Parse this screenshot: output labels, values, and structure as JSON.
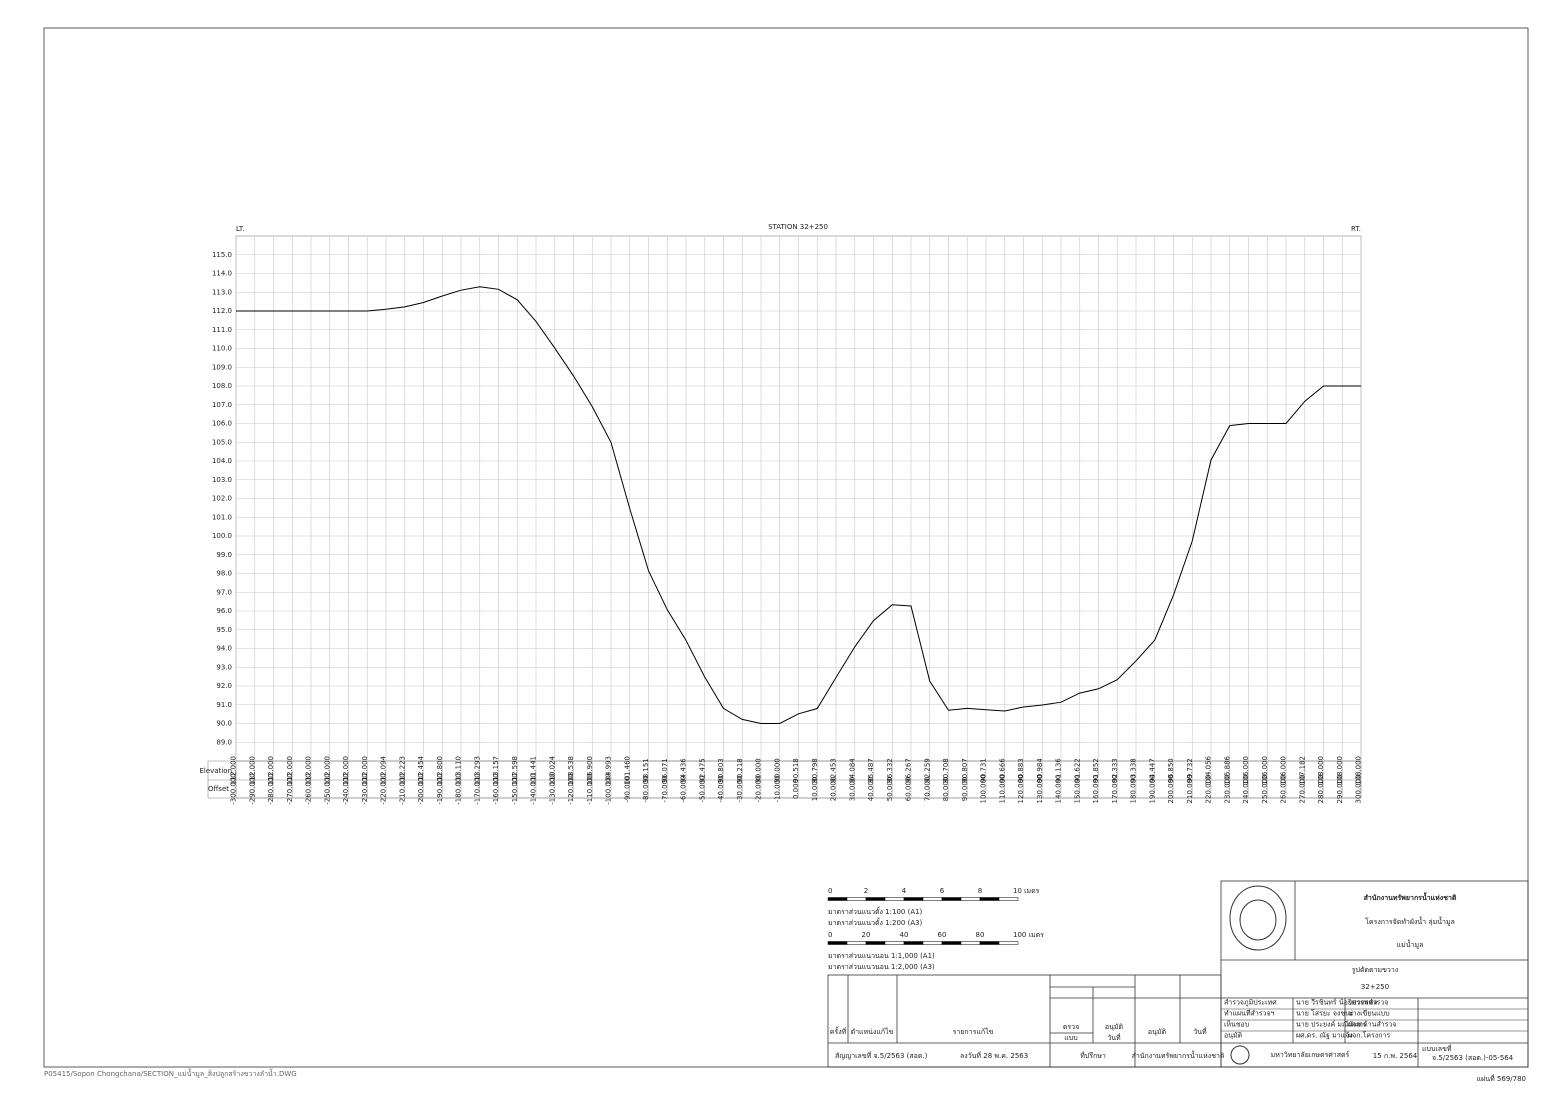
{
  "chart_data": {
    "type": "line",
    "title": "STATION 32+250",
    "left_label": "LT.",
    "right_label": "RT.",
    "row_labels": [
      "Elevation",
      "Offset"
    ],
    "x": [
      -300,
      -290,
      -280,
      -270,
      -260,
      -250,
      -240,
      -230,
      -220,
      -210,
      -200,
      -190,
      -180,
      -170,
      -160,
      -150,
      -140,
      -130,
      -120,
      -110,
      -100,
      -90,
      -80,
      -70,
      -60,
      -50,
      -40,
      -30,
      -20,
      -10,
      0,
      10,
      20,
      30,
      40,
      50,
      60,
      70,
      80,
      90,
      100,
      110,
      120,
      130,
      140,
      150,
      160,
      170,
      180,
      190,
      200,
      210,
      220,
      230,
      240,
      250,
      260,
      270,
      280,
      290,
      300
    ],
    "series": [
      {
        "color": "#000000",
        "values": [
          112,
          112,
          112,
          112,
          112,
          112,
          112,
          112,
          112.094,
          112.223,
          112.454,
          112.8,
          113.11,
          113.293,
          113.157,
          112.598,
          111.441,
          110.024,
          108.538,
          106.9,
          104.993,
          101.46,
          98.151,
          96.071,
          94.436,
          92.475,
          90.803,
          90.218,
          90,
          90,
          90.518,
          90.798,
          92.453,
          94.084,
          95.487,
          96.332,
          96.267,
          92.259,
          90.708,
          90.807,
          90.731,
          90.666,
          90.883,
          90.984,
          91.136,
          91.622,
          91.852,
          92.333,
          93.338,
          94.447,
          96.85,
          99.732,
          104.056,
          105.886,
          106,
          106,
          106,
          107.182,
          108,
          108,
          108
        ],
        "value_labels": [
          "112.000",
          "112.000",
          "112.000",
          "112.000",
          "112.000",
          "112.000",
          "112.000",
          "112.000",
          "112.094",
          "112.223",
          "112.454",
          "112.800",
          "113.110",
          "113.293",
          "113.157",
          "112.598",
          "111.441",
          "110.024",
          "108.538",
          "106.900",
          "104.993",
          "101.460",
          "98.151",
          "96.071",
          "94.436",
          "92.475",
          "90.803",
          "90.218",
          "90.000",
          "90.000",
          "90.518",
          "90.798",
          "92.453",
          "94.084",
          "95.487",
          "96.332",
          "96.267",
          "92.259",
          "90.708",
          "90.807",
          "90.731",
          "90.666",
          "90.883",
          "90.984",
          "91.136",
          "91.622",
          "91.852",
          "92.333",
          "93.338",
          "94.447",
          "96.850",
          "99.732",
          "104.056",
          "105.886",
          "106.000",
          "106.000",
          "106.000",
          "107.182",
          "108.000",
          "108.000",
          "108.000"
        ]
      }
    ],
    "xlim": [
      -300,
      300
    ],
    "ylim": [
      88,
      116
    ],
    "xticks": [
      {
        "value": -300,
        "label": "-300.000"
      },
      {
        "value": -290,
        "label": "-290.000"
      },
      {
        "value": -280,
        "label": "-280.000"
      },
      {
        "value": -270,
        "label": "-270.000"
      },
      {
        "value": -260,
        "label": "-260.000"
      },
      {
        "value": -250,
        "label": "-250.000"
      },
      {
        "value": -240,
        "label": "-240.000"
      },
      {
        "value": -230,
        "label": "-230.000"
      },
      {
        "value": -220,
        "label": "-220.000"
      },
      {
        "value": -210,
        "label": "-210.000"
      },
      {
        "value": -200,
        "label": "-200.000"
      },
      {
        "value": -190,
        "label": "-190.000"
      },
      {
        "value": -180,
        "label": "-180.000"
      },
      {
        "value": -170,
        "label": "-170.000"
      },
      {
        "value": -160,
        "label": "-160.000"
      },
      {
        "value": -150,
        "label": "-150.000"
      },
      {
        "value": -140,
        "label": "-140.000"
      },
      {
        "value": -130,
        "label": "-130.000"
      },
      {
        "value": -120,
        "label": "-120.000"
      },
      {
        "value": -110,
        "label": "-110.000"
      },
      {
        "value": -100,
        "label": "-100.000"
      },
      {
        "value": -90,
        "label": "-90.000"
      },
      {
        "value": -80,
        "label": "-80.000"
      },
      {
        "value": -70,
        "label": "-70.000"
      },
      {
        "value": -60,
        "label": "-60.000"
      },
      {
        "value": -50,
        "label": "-50.000"
      },
      {
        "value": -40,
        "label": "-40.000"
      },
      {
        "value": -30,
        "label": "-30.000"
      },
      {
        "value": -20,
        "label": "-20.000"
      },
      {
        "value": -10,
        "label": "-10.000"
      },
      {
        "value": 0,
        "label": "0.000"
      },
      {
        "value": 10,
        "label": "10.000"
      },
      {
        "value": 20,
        "label": "20.000"
      },
      {
        "value": 30,
        "label": "30.000"
      },
      {
        "value": 40,
        "label": "40.000"
      },
      {
        "value": 50,
        "label": "50.000"
      },
      {
        "value": 60,
        "label": "60.000"
      },
      {
        "value": 70,
        "label": "70.000"
      },
      {
        "value": 80,
        "label": "80.000"
      },
      {
        "value": 90,
        "label": "90.000"
      },
      {
        "value": 100,
        "label": "100.000"
      },
      {
        "value": 110,
        "label": "110.000"
      },
      {
        "value": 120,
        "label": "120.000"
      },
      {
        "value": 130,
        "label": "130.000"
      },
      {
        "value": 140,
        "label": "140.000"
      },
      {
        "value": 150,
        "label": "150.000"
      },
      {
        "value": 160,
        "label": "160.000"
      },
      {
        "value": 170,
        "label": "170.000"
      },
      {
        "value": 180,
        "label": "180.000"
      },
      {
        "value": 190,
        "label": "190.000"
      },
      {
        "value": 200,
        "label": "200.000"
      },
      {
        "value": 210,
        "label": "210.000"
      },
      {
        "value": 220,
        "label": "220.000"
      },
      {
        "value": 230,
        "label": "230.000"
      },
      {
        "value": 240,
        "label": "240.000"
      },
      {
        "value": 250,
        "label": "250.000"
      },
      {
        "value": 260,
        "label": "260.000"
      },
      {
        "value": 270,
        "label": "270.000"
      },
      {
        "value": 280,
        "label": "280.000"
      },
      {
        "value": 290,
        "label": "290.000"
      },
      {
        "value": 300,
        "label": "300.000"
      }
    ],
    "yticks": [
      {
        "value": 89,
        "label": "89.0"
      },
      {
        "value": 90,
        "label": "90.0"
      },
      {
        "value": 91,
        "label": "91.0"
      },
      {
        "value": 92,
        "label": "92.0"
      },
      {
        "value": 93,
        "label": "93.0"
      },
      {
        "value": 94,
        "label": "94.0"
      },
      {
        "value": 95,
        "label": "95.0"
      },
      {
        "value": 96,
        "label": "96.0"
      },
      {
        "value": 97,
        "label": "97.0"
      },
      {
        "value": 98,
        "label": "98.0"
      },
      {
        "value": 99,
        "label": "99.0"
      },
      {
        "value": 100,
        "label": "100.0"
      },
      {
        "value": 101,
        "label": "101.0"
      },
      {
        "value": 102,
        "label": "102.0"
      },
      {
        "value": 103,
        "label": "103.0"
      },
      {
        "value": 104,
        "label": "104.0"
      },
      {
        "value": 105,
        "label": "105.0"
      },
      {
        "value": 106,
        "label": "106.0"
      },
      {
        "value": 107,
        "label": "107.0"
      },
      {
        "value": 108,
        "label": "108.0"
      },
      {
        "value": 109,
        "label": "109.0"
      },
      {
        "value": 110,
        "label": "110.0"
      },
      {
        "value": 111,
        "label": "111.0"
      },
      {
        "value": 112,
        "label": "112.0"
      },
      {
        "value": 113,
        "label": "113.0"
      },
      {
        "value": 114,
        "label": "114.0"
      },
      {
        "value": 115,
        "label": "115.0"
      }
    ],
    "grid": true,
    "grid_color": "#c8c8c8"
  },
  "scale_bars": [
    {
      "ticks": [
        "0",
        "2",
        "4",
        "6",
        "8",
        "10 เมตร"
      ],
      "notes": [
        "มาตราส่วนแนวตั้ง 1:100 (A1)",
        "มาตราส่วนแนวตั้ง 1:200 (A3)"
      ]
    },
    {
      "ticks": [
        "0",
        "20",
        "40",
        "60",
        "80",
        "100 เมตร"
      ],
      "notes": [
        "มาตราส่วนแนวนอน 1:1,000 (A1)",
        "มาตราส่วนแนวนอน 1:2,000 (A3)"
      ]
    }
  ],
  "revision_block": {
    "headers": [
      "ครั้งที่",
      "ตำแหน่งแก้ไข",
      "รายการแก้ไข",
      "ตรวจ",
      "อนุมัติ",
      "แบบ",
      "วันที่",
      "อนุมัติ",
      "วันที่"
    ],
    "contract": "สัญญาเลขที่ จ.5/2563 (สอต.)",
    "contract_date": "ลงวันที่ 28 พ.ค. 2563",
    "consultant": "ที่ปรึกษา",
    "client": "สำนักงานทรัพยากรน้ำแห่งชาติ"
  },
  "title_block": {
    "agency": "สำนักงานทรัพยากรน้ำแห่งชาติ",
    "project": "โครงการจัดทำผังน้ำ ลุ่มน้ำมูล",
    "river": "แม่น้ำมูล",
    "drawing_title": "รูปตัดตามขวาง",
    "station": "32+250",
    "signatures": [
      [
        "สำรวจภูมิประเทศ",
        "นาย วีรชินทร์ น้อยบรรพชล",
        "วิศวกรสำรวจ"
      ],
      [
        "ทำแผนที่สำรวจฯ",
        "นาย โสรยะ จงชนะ",
        "ช่างเขียนแบบ"
      ],
      [
        "เห็นชอบ",
        "นาย ประยงค์ มณีนันทร",
        "ผจช.ด้านสำรวจ"
      ],
      [
        "อนุมัติ",
        "ผศ.ดร. ณัฐ มาแจ้ง",
        "ผจก.โครงการ"
      ]
    ],
    "university": "มหาวิทยาลัยเกษตรศาสตร์",
    "date": "15 ก.พ. 2564",
    "drawing_no_label": "แบบเลขที่",
    "drawing_no": "จ.5/2563 (สอต.)-05-564"
  },
  "footer": {
    "file": "P05415/Sopon Chongchana/SECTION_แม่น้ำมูล_สิ่งปลูกสร้างขวางลำน้ำ.DWG",
    "sheet": "แผ่นที่ 569/780"
  }
}
